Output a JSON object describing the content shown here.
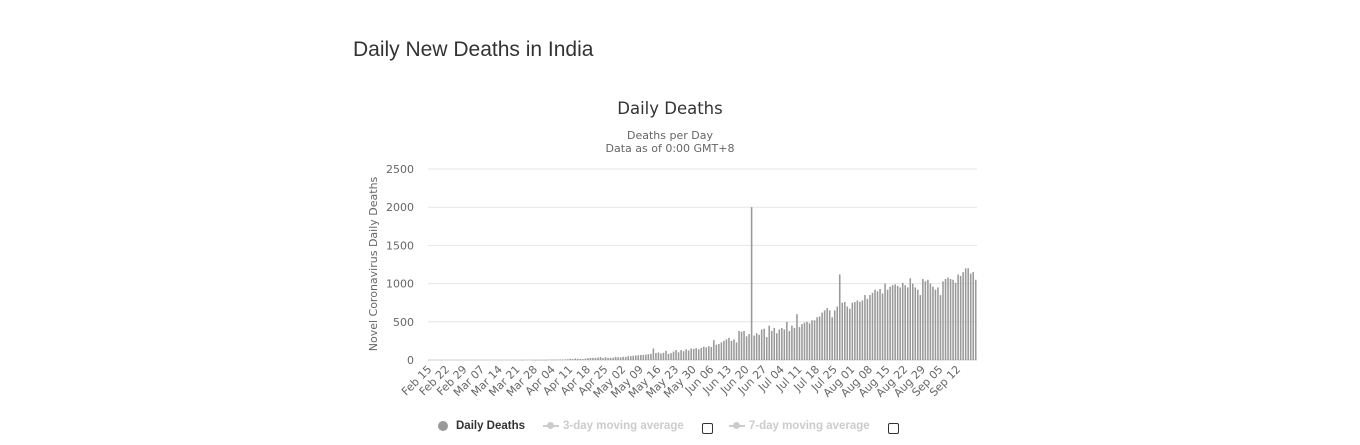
{
  "page": {
    "title": "Daily New Deaths in India"
  },
  "colors": {
    "bar": "#999999",
    "grid": "#e6e6e6",
    "text": "#333333",
    "axis_text": "#666666",
    "legend_inactive": "#cccccc"
  },
  "chart_data": {
    "type": "bar",
    "title": "Daily Deaths",
    "subtitle_line1": "Deaths per Day",
    "subtitle_line2": "Data as of 0:00 GMT+8",
    "ylabel": "Novel Coronavirus Daily Deaths",
    "xlabel": "",
    "ylim": [
      0,
      2500
    ],
    "yticks": [
      0,
      500,
      1000,
      1500,
      2000,
      2500
    ],
    "start_date": "Feb 15",
    "x_tick_labels": [
      "Feb 15",
      "Feb 22",
      "Feb 29",
      "Mar 07",
      "Mar 14",
      "Mar 21",
      "Mar 28",
      "Apr 04",
      "Apr 11",
      "Apr 18",
      "Apr 25",
      "May 02",
      "May 09",
      "May 16",
      "May 23",
      "May 30",
      "Jun 06",
      "Jun 13",
      "Jun 20",
      "Jun 27",
      "Jul 04",
      "Jul 11",
      "Jul 18",
      "Jul 25",
      "Aug 01",
      "Aug 08",
      "Aug 15",
      "Aug 22",
      "Aug 29",
      "Sep 05",
      "Sep 12"
    ],
    "series": [
      {
        "name": "Daily Deaths",
        "values": [
          0,
          0,
          0,
          0,
          0,
          0,
          0,
          0,
          0,
          0,
          0,
          0,
          0,
          0,
          0,
          0,
          0,
          0,
          0,
          0,
          0,
          0,
          0,
          0,
          0,
          0,
          0,
          0,
          0,
          0,
          0,
          0,
          0,
          0,
          0,
          0,
          0,
          1,
          0,
          0,
          0,
          1,
          1,
          1,
          1,
          2,
          1,
          3,
          5,
          4,
          4,
          6,
          6,
          5,
          8,
          9,
          16,
          12,
          20,
          15,
          13,
          12,
          19,
          25,
          27,
          28,
          28,
          31,
          40,
          26,
          37,
          27,
          29,
          30,
          40,
          36,
          35,
          42,
          40,
          50,
          50,
          55,
          60,
          62,
          65,
          68,
          70,
          75,
          80,
          150,
          90,
          100,
          85,
          95,
          120,
          80,
          90,
          110,
          130,
          100,
          130,
          115,
          140,
          125,
          150,
          145,
          155,
          140,
          160,
          175,
          165,
          180,
          170,
          260,
          200,
          210,
          230,
          250,
          270,
          290,
          250,
          270,
          230,
          380,
          370,
          380,
          310,
          340,
          2000,
          320,
          350,
          330,
          400,
          410,
          300,
          450,
          380,
          420,
          350,
          400,
          420,
          400,
          500,
          380,
          450,
          420,
          600,
          430,
          470,
          490,
          500,
          480,
          520,
          520,
          560,
          570,
          620,
          650,
          680,
          650,
          560,
          650,
          700,
          1120,
          750,
          760,
          700,
          670,
          750,
          760,
          780,
          760,
          780,
          850,
          800,
          850,
          880,
          920,
          900,
          930,
          870,
          1000,
          920,
          960,
          980,
          990,
          970,
          950,
          1010,
          980,
          950,
          1070,
          1000,
          950,
          920,
          850,
          1060,
          1030,
          1050,
          1000,
          960,
          920,
          950,
          850,
          1030,
          1060,
          1080,
          1060,
          1050,
          1010,
          1120,
          1100,
          1150,
          1200,
          1200,
          1130,
          1150,
          1050
        ]
      }
    ],
    "legend": [
      {
        "name": "Daily Deaths",
        "visible": true
      },
      {
        "name": "3-day moving average",
        "visible": false
      },
      {
        "name": "7-day moving average",
        "visible": false
      }
    ]
  }
}
